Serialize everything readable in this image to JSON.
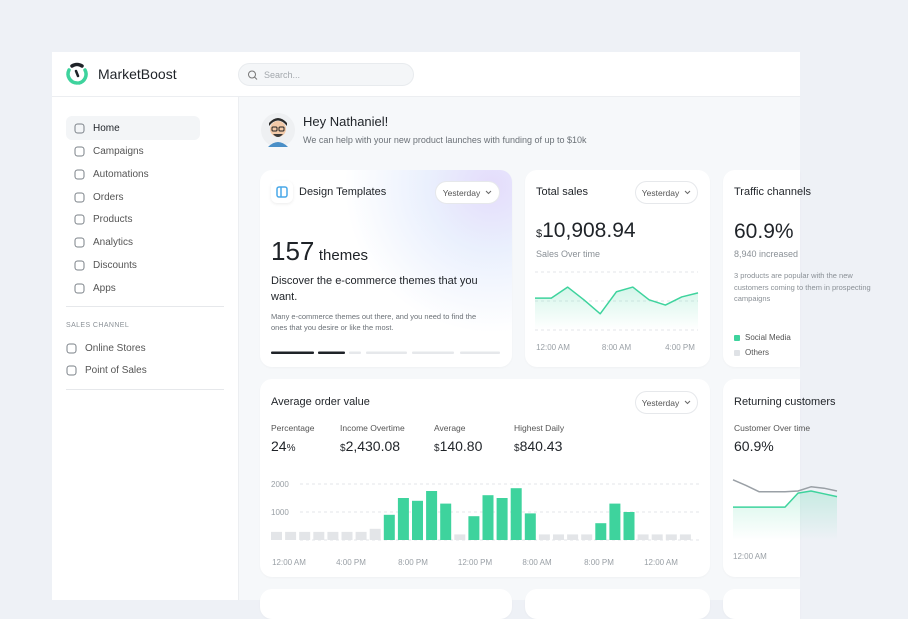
{
  "app": {
    "name": "MarketBoost",
    "search_placeholder": "Search..."
  },
  "sidebar": {
    "menu": [
      "Home",
      "Campaigns",
      "Automations",
      "Orders",
      "Products",
      "Analytics",
      "Discounts",
      "Apps"
    ],
    "active": 0,
    "section_title": "SALES CHANNEL",
    "channels": [
      "Online Stores",
      "Point of Sales"
    ]
  },
  "greeting": {
    "title": "Hey Nathaniel!",
    "subtitle": "We can help with your new product launches with funding of up to $10k"
  },
  "templates_card": {
    "title": "Design Templates",
    "period": "Yesterday",
    "count": 157,
    "count_unit": "themes",
    "headline": "Discover the e-commerce themes that you want.",
    "description": "Many e-commerce themes out there, and you need to find the ones that you desire or like the most."
  },
  "total_sales": {
    "title": "Total sales",
    "period": "Yesterday",
    "currency": "$",
    "amount": "10,908.94",
    "caption": "Sales Over time",
    "chart": {
      "type": "line",
      "color": "#3ed39d",
      "values": [
        55,
        55,
        74,
        52,
        28,
        66,
        74,
        52,
        43,
        57,
        64
      ],
      "ylim": [
        0,
        100
      ],
      "xlabels": [
        "12:00 AM",
        "8:00 AM",
        "4:00 PM"
      ]
    }
  },
  "traffic_card": {
    "title": "Traffic channels",
    "value": "60.9%",
    "change": "8,940 increased",
    "description": "3 products are popular with the new customers coming to them in prospecting campaigns",
    "legend": [
      {
        "name": "Social Media",
        "color": "#3ed39d"
      },
      {
        "name": "Others",
        "color": "#dfe2e6"
      }
    ]
  },
  "order_card": {
    "title": "Average order value",
    "period": "Yesterday",
    "stats": [
      {
        "label": "Percentage",
        "value": "24",
        "unit": "%"
      },
      {
        "label": "Income Overtime",
        "currency": "$",
        "value": "2,430.08"
      },
      {
        "label": "Average",
        "currency": "$",
        "value": "140.80"
      },
      {
        "label": "Highest Daily",
        "currency": "$",
        "value": "840.43"
      }
    ],
    "chart": {
      "type": "bar",
      "ylim": [
        0,
        2000
      ],
      "yticks": [
        1000,
        2000
      ],
      "values": [
        290,
        290,
        290,
        290,
        290,
        290,
        290,
        400,
        900,
        1500,
        1400,
        1750,
        1300,
        200,
        850,
        1600,
        1500,
        1850,
        950,
        200,
        200,
        200,
        200,
        600,
        1300,
        1000,
        200,
        200,
        200,
        200
      ],
      "colors": [
        "#e3e5e8",
        "#e3e5e8",
        "#e3e5e8",
        "#e3e5e8",
        "#e3e5e8",
        "#e3e5e8",
        "#e3e5e8",
        "#e3e5e8",
        "#3ed39d",
        "#3ed39d",
        "#3ed39d",
        "#3ed39d",
        "#3ed39d",
        "#e3e5e8",
        "#3ed39d",
        "#3ed39d",
        "#3ed39d",
        "#3ed39d",
        "#3ed39d",
        "#e3e5e8",
        "#e3e5e8",
        "#e3e5e8",
        "#e3e5e8",
        "#3ed39d",
        "#3ed39d",
        "#3ed39d",
        "#e3e5e8",
        "#e3e5e8",
        "#e3e5e8",
        "#e3e5e8"
      ],
      "xlabels": [
        "12:00 AM",
        "4:00 PM",
        "8:00 PM",
        "12:00 PM",
        "8:00 AM",
        "8:00 PM",
        "12:00 AM"
      ]
    }
  },
  "returning_card": {
    "title": "Returning customers",
    "caption": "Customer Over time",
    "value": "60.9%",
    "chart": {
      "type": "line",
      "ylim": [
        0,
        100
      ],
      "series": [
        {
          "color": "#9aa0a6",
          "values": [
            86,
            78,
            69,
            69,
            69,
            70,
            76,
            74,
            70
          ]
        },
        {
          "color": "#3ed39d",
          "values": [
            47,
            47,
            47,
            47,
            47,
            67,
            70,
            66,
            62
          ]
        }
      ],
      "xlabels": [
        "12:00 AM"
      ]
    }
  }
}
